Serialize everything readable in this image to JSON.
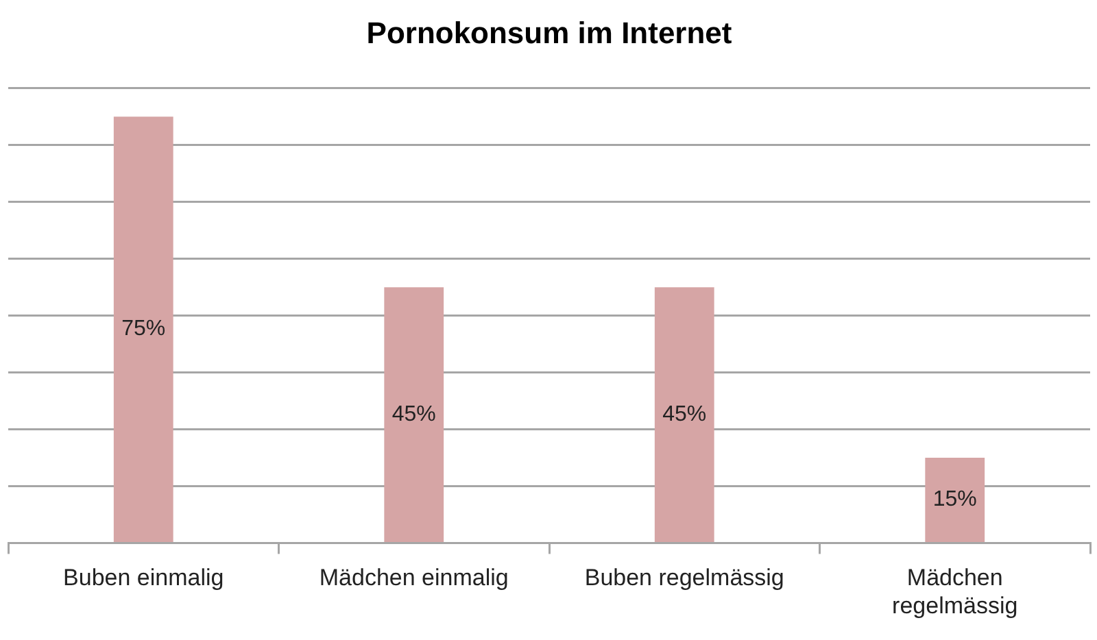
{
  "chart_data": {
    "type": "bar",
    "title": "Pornokonsum im Internet",
    "categories": [
      "Buben einmalig",
      "Mädchen einmalig",
      "Buben regelmässig",
      "Mädchen regelmässig"
    ],
    "values": [
      75,
      45,
      45,
      15
    ],
    "color": "#d6a5a5",
    "value_labels": [
      "75%",
      "45%",
      "45%",
      "15%"
    ],
    "ylim": [
      0,
      80
    ],
    "yticks": [
      0,
      10,
      20,
      30,
      40,
      50,
      60,
      70,
      80
    ],
    "grid": "y",
    "tick_labels": "x"
  }
}
